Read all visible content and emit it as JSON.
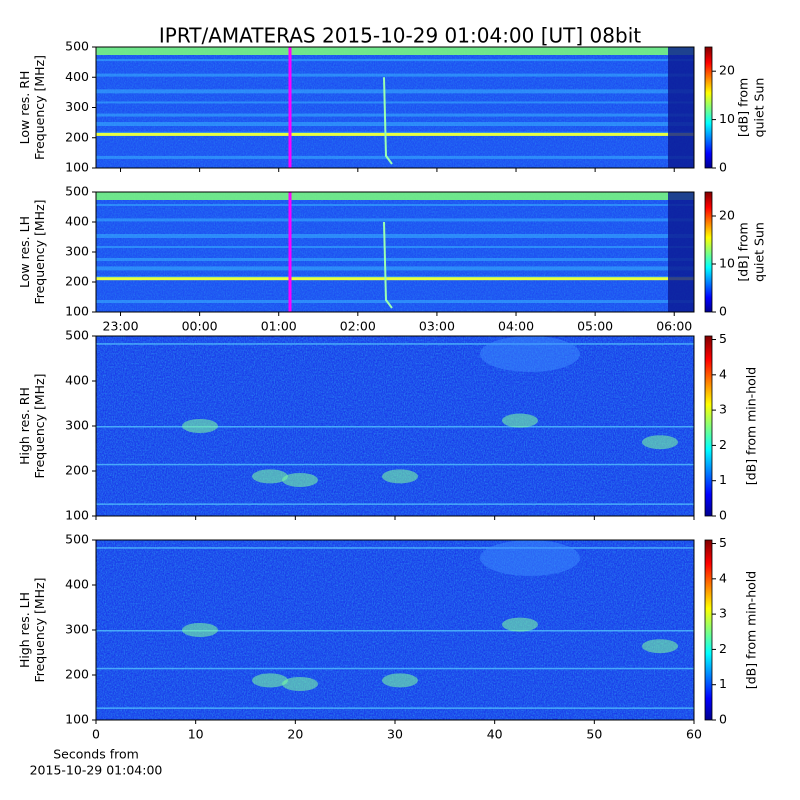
{
  "title": "IPRT/AMATERAS 2015-10-29 01:04:00 [UT]   08bit",
  "chart_data": [
    {
      "type": "spectrogram",
      "ylabel": [
        "Low res. RH",
        "Frequency [MHz]"
      ],
      "ylim": [
        100,
        500
      ],
      "yticks": [
        100,
        200,
        300,
        400,
        500
      ],
      "colorbar": {
        "label": [
          "[dB] from",
          "quiet Sun"
        ],
        "lim": [
          0,
          25
        ],
        "ticks": [
          0,
          10,
          20
        ]
      }
    },
    {
      "type": "spectrogram",
      "ylabel": [
        "Low res. LH",
        "Frequency [MHz]"
      ],
      "ylim": [
        100,
        500
      ],
      "yticks": [
        100,
        200,
        300,
        400,
        500
      ],
      "xlim": [
        22.69,
        30.25
      ],
      "xticks": [
        {
          "value": 23,
          "label": "23:00"
        },
        {
          "value": 24,
          "label": "00:00"
        },
        {
          "value": 25,
          "label": "01:00"
        },
        {
          "value": 26,
          "label": "02:00"
        },
        {
          "value": 27,
          "label": "03:00"
        },
        {
          "value": 28,
          "label": "04:00"
        },
        {
          "value": 29,
          "label": "05:00"
        },
        {
          "value": 30,
          "label": "06:00"
        }
      ],
      "colorbar": {
        "label": [
          "[dB] from",
          "quiet Sun"
        ],
        "lim": [
          0,
          25
        ],
        "ticks": [
          0,
          10,
          20
        ]
      }
    },
    {
      "type": "spectrogram",
      "ylabel": [
        "High res. RH",
        "Frequency [MHz]"
      ],
      "ylim": [
        100,
        500
      ],
      "yticks": [
        100,
        200,
        300,
        400,
        500
      ],
      "colorbar": {
        "label": [
          "[dB] from min-hold"
        ],
        "lim": [
          0,
          5.1
        ],
        "ticks": [
          0,
          1,
          2,
          3,
          4,
          5
        ]
      }
    },
    {
      "type": "spectrogram",
      "ylabel": [
        "High res. LH",
        "Frequency [MHz]"
      ],
      "ylim": [
        100,
        500
      ],
      "yticks": [
        100,
        200,
        300,
        400,
        500
      ],
      "xlim": [
        0,
        60
      ],
      "xticks": [
        0,
        10,
        20,
        30,
        40,
        50,
        60
      ],
      "xlabel": [
        "Seconds from",
        "2015-10-29 01:04:00"
      ],
      "colorbar": {
        "label": [
          "[dB] from min-hold"
        ],
        "lim": [
          0,
          5.1
        ],
        "ticks": [
          0,
          1,
          2,
          3,
          4,
          5
        ]
      }
    }
  ]
}
